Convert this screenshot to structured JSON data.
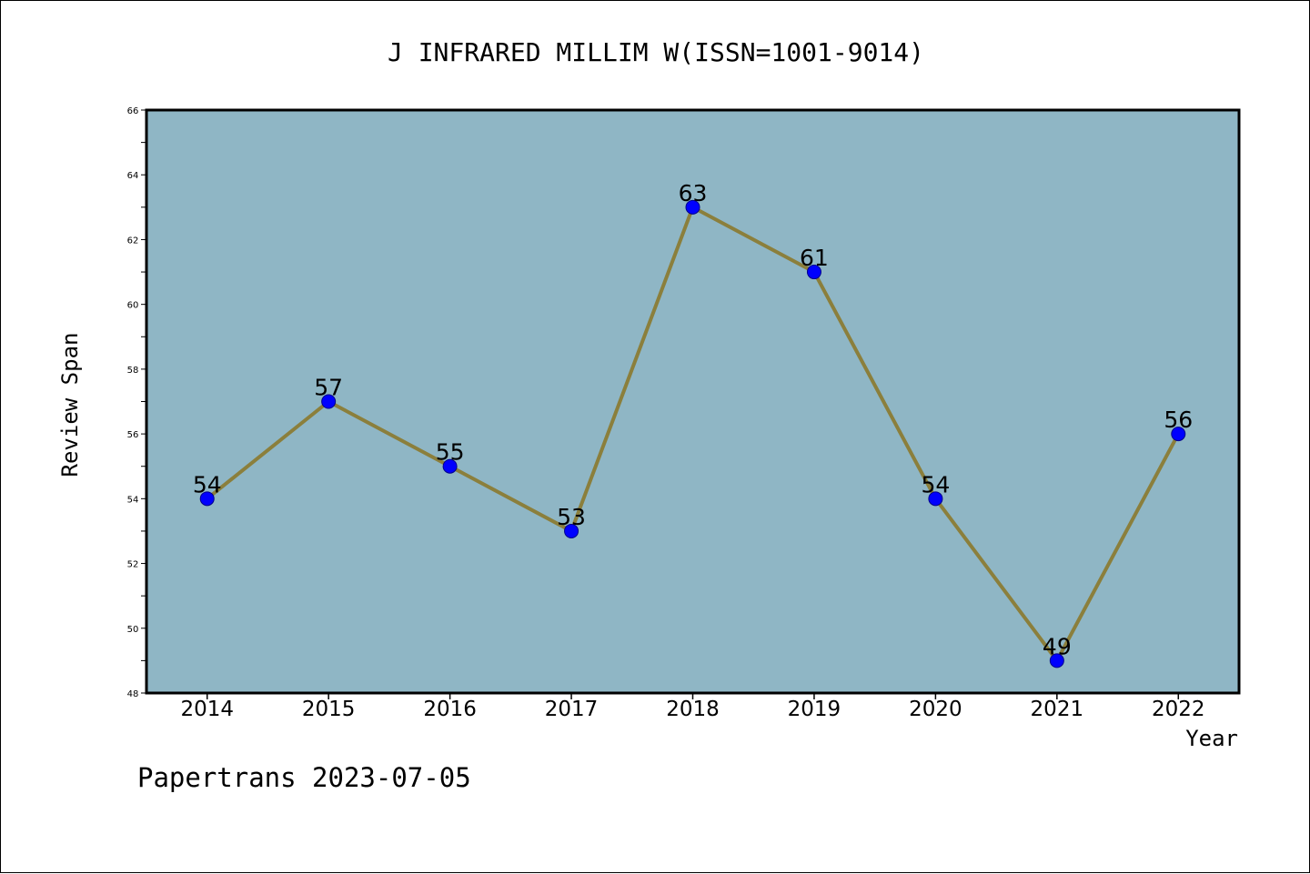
{
  "colors": {
    "plot_background": "#8fb6c5",
    "line": "#8b7f3c",
    "marker_fill": "#0000ff",
    "marker_stroke": "#00008b",
    "axis": "#000000"
  },
  "chart_data": {
    "type": "line",
    "title": "J INFRARED MILLIM W(ISSN=1001-9014)",
    "xlabel": "Year",
    "ylabel": "Review Span",
    "categories": [
      "2014",
      "2015",
      "2016",
      "2017",
      "2018",
      "2019",
      "2020",
      "2021",
      "2022"
    ],
    "series": [
      {
        "values": [
          54,
          57,
          55,
          53,
          63,
          61,
          54,
          49,
          56
        ]
      }
    ],
    "ylim": [
      48,
      66
    ],
    "yticks": [
      48,
      50,
      52,
      54,
      56,
      58,
      60,
      62,
      64,
      66
    ],
    "data_labels": true,
    "grid": false,
    "legend": "none"
  },
  "footer": {
    "text": "Papertrans 2023-07-05"
  }
}
